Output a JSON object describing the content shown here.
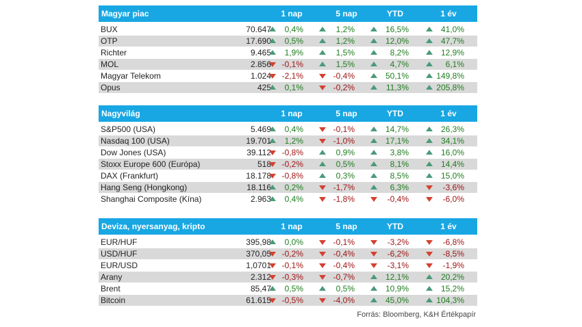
{
  "columns": [
    "1 nap",
    "5 nap",
    "YTD",
    "1 év"
  ],
  "sections": [
    {
      "title": "Magyar piac",
      "rows": [
        {
          "name": "BUX",
          "value": "70.647",
          "d1": "0,4%",
          "d5": "1,2%",
          "ytd": "16,5%",
          "y1": "41,0%"
        },
        {
          "name": "OTP",
          "value": "17.690",
          "d1": "0,5%",
          "d5": "1,2%",
          "ytd": "12,0%",
          "y1": "47,7%"
        },
        {
          "name": "Richter",
          "value": "9.465",
          "d1": "1,9%",
          "d5": "1,5%",
          "ytd": "8,2%",
          "y1": "12,9%"
        },
        {
          "name": "MOL",
          "value": "2.856",
          "d1": "-0,1%",
          "d5": "1,5%",
          "ytd": "4,7%",
          "y1": "6,1%"
        },
        {
          "name": "Magyar Telekom",
          "value": "1.024",
          "d1": "-2,1%",
          "d5": "-0,4%",
          "ytd": "50,1%",
          "y1": "149,8%"
        },
        {
          "name": "Opus",
          "value": "425",
          "d1": "0,1%",
          "d5": "-0,2%",
          "ytd": "11,3%",
          "y1": "205,8%"
        }
      ]
    },
    {
      "title": "Nagyvilág",
      "rows": [
        {
          "name": "S&P500 (USA)",
          "value": "5.469",
          "d1": "0,4%",
          "d5": "-0,1%",
          "ytd": "14,7%",
          "y1": "26,3%"
        },
        {
          "name": "Nasdaq 100 (USA)",
          "value": "19.701",
          "d1": "1,2%",
          "d5": "-1,0%",
          "ytd": "17,1%",
          "y1": "34,1%"
        },
        {
          "name": "Dow Jones (USA)",
          "value": "39.112",
          "d1": "-0,8%",
          "d5": "0,9%",
          "ytd": "3,8%",
          "y1": "16,0%"
        },
        {
          "name": "Stoxx Europe 600 (Európa)",
          "value": "518",
          "d1": "-0,2%",
          "d5": "0,5%",
          "ytd": "8,1%",
          "y1": "14,4%"
        },
        {
          "name": "DAX (Frankfurt)",
          "value": "18.178",
          "d1": "-0,8%",
          "d5": "0,3%",
          "ytd": "8,5%",
          "y1": "15,0%"
        },
        {
          "name": "Hang Seng (Hongkong)",
          "value": "18.116",
          "d1": "0,2%",
          "d5": "-1,7%",
          "ytd": "6,3%",
          "y1": "-3,6%"
        },
        {
          "name": "Shanghai Composite (Kína)",
          "value": "2.963",
          "d1": "0,4%",
          "d5": "-1,8%",
          "ytd": "-0,4%",
          "y1": "-6,0%"
        }
      ]
    },
    {
      "title": "Deviza, nyersanyag, kripto",
      "rows": [
        {
          "name": "EUR/HUF",
          "value": "395,98",
          "d1": "0,0%",
          "d5": "-0,1%",
          "ytd": "-3,2%",
          "y1": "-6,8%"
        },
        {
          "name": "USD/HUF",
          "value": "370,05",
          "d1": "-0,2%",
          "d5": "-0,4%",
          "ytd": "-6,2%",
          "y1": "-8,5%"
        },
        {
          "name": "EUR/USD",
          "value": "1,0701",
          "d1": "-0,1%",
          "d5": "-0,4%",
          "ytd": "-3,1%",
          "y1": "-1,9%"
        },
        {
          "name": "Arany",
          "value": "2.312",
          "d1": "-0,3%",
          "d5": "-0,7%",
          "ytd": "12,1%",
          "y1": "20,2%"
        },
        {
          "name": "Brent",
          "value": "85,47",
          "d1": "0,5%",
          "d5": "0,5%",
          "ytd": "10,9%",
          "y1": "15,2%"
        },
        {
          "name": "Bitcoin",
          "value": "61.615",
          "d1": "-0,5%",
          "d5": "-4,0%",
          "ytd": "45,0%",
          "y1": "104,3%"
        }
      ]
    }
  ],
  "source": "Forrás: Bloomberg, K&H Értékpapír",
  "colors": {
    "header": "#18a7e3",
    "alt_row": "#d9d9d9",
    "up_arrow": "#4a9a78",
    "down_arrow": "#d4412f"
  }
}
